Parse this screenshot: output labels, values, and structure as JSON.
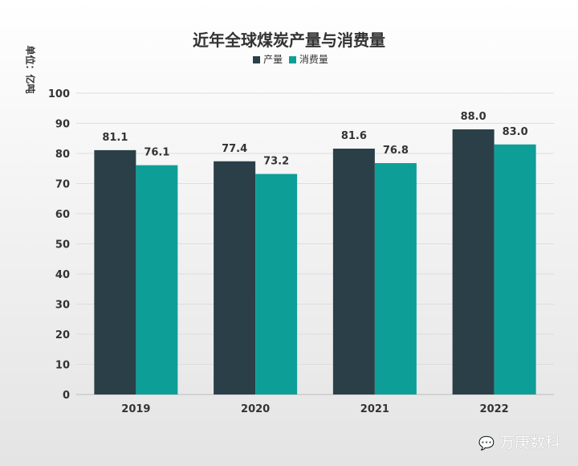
{
  "chart_data": {
    "type": "bar",
    "title": "近年全球煤炭产量与消费量",
    "ylabel": "单位：亿吨",
    "xlabel": "",
    "categories": [
      "2019",
      "2020",
      "2021",
      "2022"
    ],
    "series": [
      {
        "name": "产量",
        "color": "#2b3f48",
        "values": [
          81.1,
          77.4,
          81.6,
          88.0
        ]
      },
      {
        "name": "消费量",
        "color": "#0e9e98",
        "values": [
          76.1,
          73.2,
          76.8,
          83.0
        ]
      }
    ],
    "ylim": [
      0,
      100
    ],
    "yticks": [
      0,
      10,
      20,
      30,
      40,
      50,
      60,
      70,
      80,
      90,
      100
    ],
    "grid": true,
    "legend_position": "top-center"
  },
  "watermark": "万庚数科"
}
